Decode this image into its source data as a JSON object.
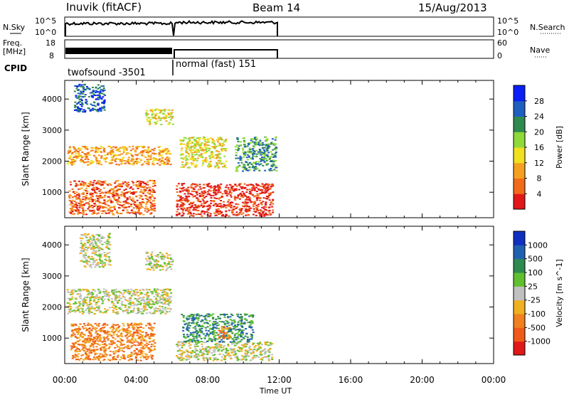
{
  "header": {
    "station": "Inuvik (fitACF)",
    "beam": "Beam 14",
    "date": "15/Aug/2013"
  },
  "params": {
    "nsky_label": "N.Sky",
    "nsearch_label": "N.Search",
    "freq_label_1": "Freq.",
    "freq_label_2": "[MHz]",
    "nave_label": "Nave",
    "cpid_label": "CPID",
    "noise_ticks": [
      "10^5",
      "10^0"
    ],
    "freq_ticks": [
      "18",
      "8"
    ],
    "nave_ticks": [
      "60",
      "0"
    ],
    "cpid_segments": [
      {
        "label": "twofsound -3501",
        "start_h": 0.0,
        "end_h": 6.0
      },
      {
        "label": "normal (fast) 151",
        "start_h": 6.0,
        "end_h": 12.0
      }
    ]
  },
  "chart_data": [
    {
      "type": "heatmap",
      "title": "Power",
      "ylabel": "Slant Range [km]",
      "xlabel": "Time UT",
      "xlim": [
        0,
        24
      ],
      "ylim": [
        180,
        4600
      ],
      "x_ticks": [
        "00:00",
        "04:00",
        "08:00",
        "12:00",
        "16:00",
        "20:00",
        "00:00"
      ],
      "y_ticks": [
        1000,
        2000,
        3000,
        4000
      ],
      "colorbar": {
        "label": "Power [dB]",
        "ticks": [
          "4",
          "8",
          "12",
          "16",
          "20",
          "24",
          "28"
        ],
        "colors": [
          "#0a1ff5",
          "#1f5fc0",
          "#2e8a4f",
          "#8fd93a",
          "#f0e020",
          "#f5a020",
          "#f06b1a",
          "#e01818"
        ]
      },
      "data_extent_h": [
        0.0,
        12.0
      ],
      "regions": [
        {
          "t0": 0.1,
          "t1": 5.9,
          "r0": 1900,
          "r1": 2500,
          "level": 5
        },
        {
          "t0": 0.2,
          "t1": 5.0,
          "r0": 300,
          "r1": 1400,
          "level": 6
        },
        {
          "t0": 6.2,
          "t1": 11.6,
          "r0": 250,
          "r1": 1300,
          "level": 7
        },
        {
          "t0": 4.5,
          "t1": 6.0,
          "r0": 3200,
          "r1": 3700,
          "level": 4
        },
        {
          "t0": 0.5,
          "t1": 2.2,
          "r0": 3600,
          "r1": 4500,
          "level": 1
        },
        {
          "t0": 6.4,
          "t1": 9.0,
          "r0": 1800,
          "r1": 2800,
          "level": 4
        },
        {
          "t0": 9.5,
          "t1": 11.8,
          "r0": 1700,
          "r1": 2800,
          "level": 2
        }
      ]
    },
    {
      "type": "heatmap",
      "title": "Velocity",
      "ylabel": "Slant Range [km]",
      "xlabel": "Time UT",
      "xlim": [
        0,
        24
      ],
      "ylim": [
        180,
        4600
      ],
      "x_ticks": [
        "00:00",
        "04:00",
        "08:00",
        "12:00",
        "16:00",
        "20:00",
        "00:00"
      ],
      "y_ticks": [
        1000,
        2000,
        3000,
        4000
      ],
      "colorbar": {
        "label": "Velocity [m s^-1]",
        "ticks": [
          "1000",
          "500",
          "100",
          "25",
          "-25",
          "-100",
          "-500",
          "-1000"
        ],
        "colors": [
          "#1030c0",
          "#2060b0",
          "#2e8a4f",
          "#60c030",
          "#c0c0c0",
          "#f0b020",
          "#f08020",
          "#f05a1a",
          "#e01818"
        ]
      },
      "data_extent_h": [
        0.0,
        12.0
      ],
      "regions": [
        {
          "t0": 0.1,
          "t1": 5.9,
          "r0": 1800,
          "r1": 2600,
          "level": 4
        },
        {
          "t0": 0.3,
          "t1": 5.0,
          "r0": 300,
          "r1": 1500,
          "level": 6
        },
        {
          "t0": 6.2,
          "t1": 11.6,
          "r0": 300,
          "r1": 900,
          "level": 4
        },
        {
          "t0": 6.5,
          "t1": 10.5,
          "r0": 900,
          "r1": 1800,
          "level": 2
        },
        {
          "t0": 0.8,
          "t1": 2.5,
          "r0": 3300,
          "r1": 4400,
          "level": 4
        },
        {
          "t0": 4.5,
          "t1": 6.0,
          "r0": 3200,
          "r1": 3800,
          "level": 4
        },
        {
          "t0": 8.5,
          "t1": 9.2,
          "r0": 1000,
          "r1": 1400,
          "level": 6
        }
      ]
    }
  ]
}
